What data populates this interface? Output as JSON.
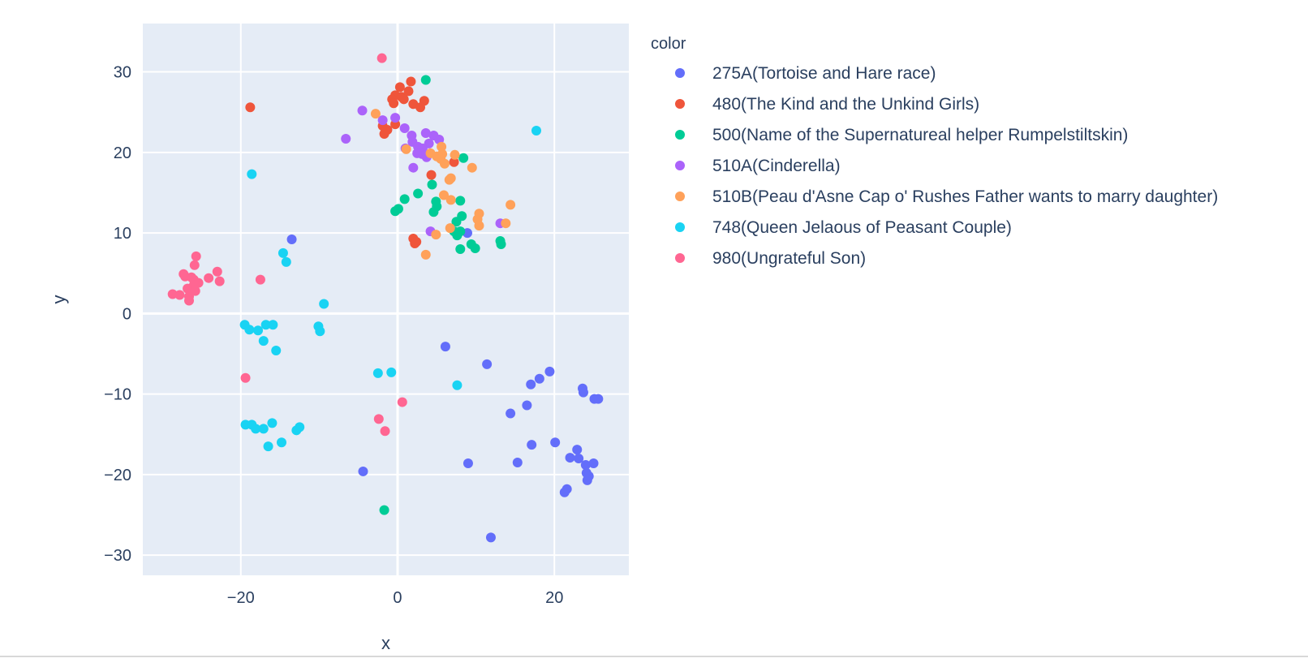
{
  "chart_data": {
    "type": "scatter",
    "title": "",
    "xlabel": "x",
    "ylabel": "y",
    "xlim": [
      -32.5,
      29.5
    ],
    "ylim": [
      -32.5,
      36
    ],
    "x_ticks": [
      -20,
      0,
      20
    ],
    "y_ticks": [
      -30,
      -20,
      -10,
      0,
      10,
      20,
      30
    ],
    "x_tick_labels": [
      "−20",
      "0",
      "20"
    ],
    "y_tick_labels": [
      "−30",
      "−20",
      "−10",
      "0",
      "10",
      "20",
      "30"
    ],
    "grid": true,
    "plot_background": "#e5ecf6",
    "legend": {
      "title": "color",
      "placement": "right"
    },
    "series": [
      {
        "name": "275A(Tortoise and Hare race)",
        "color": "#636efa",
        "points": [
          [
            -13.5,
            9.2
          ],
          [
            6.1,
            -4.1
          ],
          [
            11.4,
            -6.3
          ],
          [
            19.4,
            -7.2
          ],
          [
            18.1,
            -8.1
          ],
          [
            17.0,
            -8.8
          ],
          [
            23.6,
            -9.3
          ],
          [
            23.7,
            -9.8
          ],
          [
            25.1,
            -10.6
          ],
          [
            25.6,
            -10.6
          ],
          [
            16.5,
            -11.4
          ],
          [
            14.4,
            -12.4
          ],
          [
            20.1,
            -16.0
          ],
          [
            17.1,
            -16.3
          ],
          [
            22.9,
            -16.9
          ],
          [
            22.0,
            -17.9
          ],
          [
            23.1,
            -18.0
          ],
          [
            24.0,
            -18.8
          ],
          [
            25.0,
            -18.6
          ],
          [
            15.3,
            -18.5
          ],
          [
            9.0,
            -18.6
          ],
          [
            24.1,
            -19.8
          ],
          [
            24.4,
            -20.2
          ],
          [
            24.2,
            -20.7
          ],
          [
            21.6,
            -21.8
          ],
          [
            21.3,
            -22.2
          ],
          [
            -4.4,
            -19.6
          ],
          [
            11.9,
            -27.8
          ],
          [
            8.9,
            10.0
          ]
        ]
      },
      {
        "name": "480(The Kind and the Unkind Girls)",
        "color": "#ef553b",
        "points": [
          [
            -18.8,
            25.6
          ],
          [
            1.7,
            28.8
          ],
          [
            0.3,
            28.1
          ],
          [
            1.4,
            27.6
          ],
          [
            -0.3,
            27.1
          ],
          [
            0.5,
            26.9
          ],
          [
            -0.7,
            26.6
          ],
          [
            3.4,
            26.4
          ],
          [
            0.8,
            26.6
          ],
          [
            -0.5,
            26.1
          ],
          [
            2.0,
            26.0
          ],
          [
            2.9,
            25.6
          ],
          [
            -0.3,
            23.5
          ],
          [
            -1.3,
            22.8
          ],
          [
            -1.7,
            22.3
          ],
          [
            -1.9,
            23.3
          ],
          [
            4.3,
            17.2
          ],
          [
            7.2,
            18.8
          ],
          [
            2.0,
            9.3
          ],
          [
            2.2,
            8.7
          ],
          [
            2.4,
            8.9
          ]
        ]
      },
      {
        "name": "500(Name of the Supernatureal helper Rumpelstiltskin)",
        "color": "#00cc96",
        "points": [
          [
            3.6,
            29.0
          ],
          [
            8.4,
            19.3
          ],
          [
            4.4,
            16.0
          ],
          [
            2.6,
            14.9
          ],
          [
            0.9,
            14.2
          ],
          [
            4.9,
            13.9
          ],
          [
            8.0,
            14.0
          ],
          [
            0.1,
            13.0
          ],
          [
            -0.3,
            12.7
          ],
          [
            5.0,
            13.3
          ],
          [
            4.6,
            12.6
          ],
          [
            8.2,
            12.1
          ],
          [
            7.5,
            11.4
          ],
          [
            7.2,
            10.2
          ],
          [
            7.6,
            9.7
          ],
          [
            8.0,
            10.2
          ],
          [
            9.4,
            8.6
          ],
          [
            9.9,
            8.1
          ],
          [
            8.0,
            8.0
          ],
          [
            13.1,
            9.0
          ],
          [
            13.2,
            8.6
          ],
          [
            -1.7,
            -24.4
          ]
        ]
      },
      {
        "name": "510A(Cinderella)",
        "color": "#ab63fa",
        "points": [
          [
            -4.5,
            25.2
          ],
          [
            -6.6,
            21.7
          ],
          [
            -1.9,
            24.0
          ],
          [
            -0.3,
            24.3
          ],
          [
            0.9,
            23.0
          ],
          [
            1.8,
            22.1
          ],
          [
            3.6,
            22.4
          ],
          [
            4.6,
            22.1
          ],
          [
            5.3,
            21.6
          ],
          [
            4.0,
            21.1
          ],
          [
            1.9,
            21.3
          ],
          [
            2.6,
            20.7
          ],
          [
            3.2,
            20.5
          ],
          [
            1.0,
            20.5
          ],
          [
            3.1,
            19.8
          ],
          [
            2.5,
            19.9
          ],
          [
            3.7,
            19.4
          ],
          [
            2.0,
            18.1
          ],
          [
            4.2,
            10.2
          ],
          [
            13.1,
            11.2
          ]
        ]
      },
      {
        "name": "510B(Peau d'Asne Cap o' Rushes Father wants to marry daughter)",
        "color": "#ffa15a",
        "points": [
          [
            -2.8,
            24.8
          ],
          [
            1.1,
            20.4
          ],
          [
            5.6,
            20.7
          ],
          [
            7.3,
            19.7
          ],
          [
            4.2,
            19.9
          ],
          [
            5.0,
            19.5
          ],
          [
            5.7,
            19.8
          ],
          [
            5.5,
            19.2
          ],
          [
            6.0,
            18.6
          ],
          [
            9.5,
            18.1
          ],
          [
            6.8,
            16.8
          ],
          [
            6.6,
            16.6
          ],
          [
            5.9,
            14.7
          ],
          [
            6.8,
            14.1
          ],
          [
            14.4,
            13.5
          ],
          [
            10.4,
            12.4
          ],
          [
            10.2,
            11.7
          ],
          [
            13.8,
            11.2
          ],
          [
            10.4,
            10.9
          ],
          [
            6.7,
            10.6
          ],
          [
            4.9,
            9.8
          ],
          [
            3.6,
            7.3
          ]
        ]
      },
      {
        "name": "748(Queen Jelaous of Peasant Couple)",
        "color": "#19d3f3",
        "points": [
          [
            17.7,
            22.7
          ],
          [
            -18.6,
            17.3
          ],
          [
            -14.6,
            7.5
          ],
          [
            -14.2,
            6.4
          ],
          [
            -9.4,
            1.2
          ],
          [
            -19.5,
            -1.4
          ],
          [
            -18.9,
            -2.0
          ],
          [
            -17.8,
            -2.1
          ],
          [
            -16.8,
            -1.4
          ],
          [
            -15.9,
            -1.4
          ],
          [
            -10.1,
            -1.6
          ],
          [
            -9.9,
            -2.2
          ],
          [
            -17.1,
            -3.4
          ],
          [
            -15.5,
            -4.6
          ],
          [
            -2.5,
            -7.4
          ],
          [
            -0.8,
            -7.3
          ],
          [
            7.6,
            -8.9
          ],
          [
            -19.4,
            -13.8
          ],
          [
            -18.6,
            -13.8
          ],
          [
            -18.1,
            -14.3
          ],
          [
            -17.1,
            -14.3
          ],
          [
            -16.0,
            -13.6
          ],
          [
            -12.9,
            -14.5
          ],
          [
            -12.5,
            -14.1
          ],
          [
            -14.8,
            -16.0
          ],
          [
            -16.5,
            -16.5
          ]
        ]
      },
      {
        "name": "980(Ungrateful Son)",
        "color": "#ff6692",
        "points": [
          [
            -2.0,
            31.7
          ],
          [
            -25.7,
            7.1
          ],
          [
            -25.9,
            6.0
          ],
          [
            -23.0,
            5.2
          ],
          [
            -27.3,
            4.9
          ],
          [
            -27.1,
            4.6
          ],
          [
            -26.3,
            4.5
          ],
          [
            -26.0,
            4.2
          ],
          [
            -24.1,
            4.4
          ],
          [
            -22.7,
            4.0
          ],
          [
            -25.4,
            3.8
          ],
          [
            -26.0,
            3.5
          ],
          [
            -26.8,
            3.1
          ],
          [
            -25.8,
            2.8
          ],
          [
            -28.7,
            2.4
          ],
          [
            -27.8,
            2.3
          ],
          [
            -26.6,
            2.1
          ],
          [
            -26.6,
            1.6
          ],
          [
            -17.5,
            4.2
          ],
          [
            -19.4,
            -8.0
          ],
          [
            0.6,
            -11.0
          ],
          [
            -2.4,
            -13.1
          ],
          [
            -1.6,
            -14.6
          ]
        ]
      }
    ]
  }
}
